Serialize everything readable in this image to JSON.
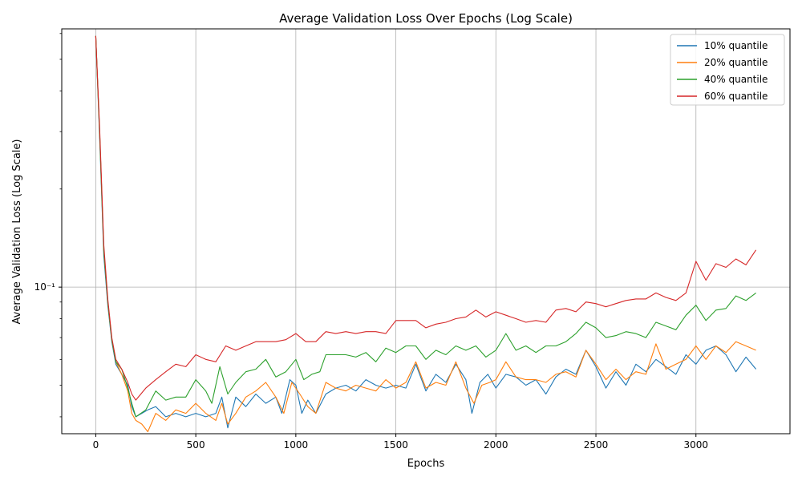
{
  "chart_data": {
    "type": "line",
    "title": "Average Validation Loss Over Epochs (Log Scale)",
    "xlabel": "Epochs",
    "ylabel": "Average Validation Loss (Log Scale)",
    "xlim": [
      -170,
      3470
    ],
    "ylim": [
      0.0355,
      0.62
    ],
    "yscale": "log",
    "grid": true,
    "legend_position": "top-right",
    "x_ticks": [
      0,
      500,
      1000,
      1500,
      2000,
      2500,
      3000
    ],
    "x_tick_labels": [
      "0",
      "500",
      "1000",
      "1500",
      "2000",
      "2500",
      "3000"
    ],
    "y_ticks": [
      0.1
    ],
    "y_tick_labels": [
      "10⁻¹"
    ],
    "series": [
      {
        "name": "10% quantile",
        "color": "#1f77b4",
        "points": [
          [
            0,
            0.59
          ],
          [
            20,
            0.28
          ],
          [
            40,
            0.125
          ],
          [
            60,
            0.088
          ],
          [
            80,
            0.068
          ],
          [
            100,
            0.058
          ],
          [
            130,
            0.054
          ],
          [
            160,
            0.05
          ],
          [
            180,
            0.043
          ],
          [
            200,
            0.04
          ],
          [
            230,
            0.041
          ],
          [
            260,
            0.042
          ],
          [
            300,
            0.043
          ],
          [
            350,
            0.04
          ],
          [
            400,
            0.041
          ],
          [
            450,
            0.04
          ],
          [
            500,
            0.041
          ],
          [
            550,
            0.04
          ],
          [
            600,
            0.041
          ],
          [
            630,
            0.046
          ],
          [
            660,
            0.037
          ],
          [
            700,
            0.046
          ],
          [
            750,
            0.043
          ],
          [
            800,
            0.047
          ],
          [
            850,
            0.044
          ],
          [
            900,
            0.046
          ],
          [
            930,
            0.041
          ],
          [
            970,
            0.052
          ],
          [
            1000,
            0.05
          ],
          [
            1030,
            0.041
          ],
          [
            1060,
            0.045
          ],
          [
            1100,
            0.041
          ],
          [
            1150,
            0.047
          ],
          [
            1200,
            0.049
          ],
          [
            1250,
            0.05
          ],
          [
            1300,
            0.048
          ],
          [
            1350,
            0.052
          ],
          [
            1400,
            0.05
          ],
          [
            1450,
            0.049
          ],
          [
            1500,
            0.05
          ],
          [
            1550,
            0.049
          ],
          [
            1600,
            0.058
          ],
          [
            1650,
            0.048
          ],
          [
            1700,
            0.054
          ],
          [
            1750,
            0.051
          ],
          [
            1800,
            0.058
          ],
          [
            1850,
            0.052
          ],
          [
            1880,
            0.041
          ],
          [
            1920,
            0.051
          ],
          [
            1960,
            0.054
          ],
          [
            2000,
            0.049
          ],
          [
            2050,
            0.054
          ],
          [
            2100,
            0.053
          ],
          [
            2150,
            0.05
          ],
          [
            2200,
            0.052
          ],
          [
            2250,
            0.047
          ],
          [
            2300,
            0.053
          ],
          [
            2350,
            0.056
          ],
          [
            2400,
            0.054
          ],
          [
            2450,
            0.064
          ],
          [
            2500,
            0.057
          ],
          [
            2550,
            0.049
          ],
          [
            2600,
            0.055
          ],
          [
            2650,
            0.05
          ],
          [
            2700,
            0.058
          ],
          [
            2750,
            0.055
          ],
          [
            2800,
            0.06
          ],
          [
            2850,
            0.057
          ],
          [
            2900,
            0.054
          ],
          [
            2950,
            0.062
          ],
          [
            3000,
            0.058
          ],
          [
            3050,
            0.064
          ],
          [
            3100,
            0.066
          ],
          [
            3150,
            0.062
          ],
          [
            3200,
            0.055
          ],
          [
            3250,
            0.061
          ],
          [
            3300,
            0.056
          ]
        ]
      },
      {
        "name": "20% quantile",
        "color": "#ff7f0e",
        "points": [
          [
            0,
            0.59
          ],
          [
            20,
            0.29
          ],
          [
            40,
            0.13
          ],
          [
            60,
            0.09
          ],
          [
            80,
            0.069
          ],
          [
            100,
            0.059
          ],
          [
            130,
            0.054
          ],
          [
            160,
            0.048
          ],
          [
            180,
            0.041
          ],
          [
            200,
            0.039
          ],
          [
            230,
            0.038
          ],
          [
            260,
            0.036
          ],
          [
            300,
            0.041
          ],
          [
            350,
            0.039
          ],
          [
            400,
            0.042
          ],
          [
            450,
            0.041
          ],
          [
            500,
            0.044
          ],
          [
            550,
            0.041
          ],
          [
            600,
            0.039
          ],
          [
            630,
            0.044
          ],
          [
            660,
            0.038
          ],
          [
            700,
            0.041
          ],
          [
            750,
            0.046
          ],
          [
            800,
            0.048
          ],
          [
            850,
            0.051
          ],
          [
            900,
            0.046
          ],
          [
            940,
            0.041
          ],
          [
            980,
            0.051
          ],
          [
            1020,
            0.047
          ],
          [
            1060,
            0.043
          ],
          [
            1100,
            0.041
          ],
          [
            1150,
            0.051
          ],
          [
            1200,
            0.049
          ],
          [
            1250,
            0.048
          ],
          [
            1300,
            0.05
          ],
          [
            1350,
            0.049
          ],
          [
            1400,
            0.048
          ],
          [
            1450,
            0.052
          ],
          [
            1500,
            0.049
          ],
          [
            1550,
            0.051
          ],
          [
            1600,
            0.059
          ],
          [
            1650,
            0.049
          ],
          [
            1700,
            0.051
          ],
          [
            1750,
            0.05
          ],
          [
            1800,
            0.059
          ],
          [
            1850,
            0.049
          ],
          [
            1890,
            0.044
          ],
          [
            1930,
            0.05
          ],
          [
            1970,
            0.051
          ],
          [
            2000,
            0.052
          ],
          [
            2050,
            0.059
          ],
          [
            2100,
            0.053
          ],
          [
            2150,
            0.052
          ],
          [
            2200,
            0.052
          ],
          [
            2250,
            0.051
          ],
          [
            2300,
            0.054
          ],
          [
            2350,
            0.055
          ],
          [
            2400,
            0.053
          ],
          [
            2450,
            0.064
          ],
          [
            2500,
            0.058
          ],
          [
            2550,
            0.052
          ],
          [
            2600,
            0.056
          ],
          [
            2650,
            0.052
          ],
          [
            2700,
            0.055
          ],
          [
            2750,
            0.054
          ],
          [
            2800,
            0.067
          ],
          [
            2850,
            0.056
          ],
          [
            2900,
            0.058
          ],
          [
            2950,
            0.06
          ],
          [
            3000,
            0.066
          ],
          [
            3050,
            0.06
          ],
          [
            3100,
            0.066
          ],
          [
            3150,
            0.063
          ],
          [
            3200,
            0.068
          ],
          [
            3250,
            0.066
          ],
          [
            3300,
            0.064
          ]
        ]
      },
      {
        "name": "40% quantile",
        "color": "#2ca02c",
        "points": [
          [
            0,
            0.59
          ],
          [
            20,
            0.29
          ],
          [
            40,
            0.13
          ],
          [
            60,
            0.09
          ],
          [
            80,
            0.069
          ],
          [
            100,
            0.059
          ],
          [
            130,
            0.056
          ],
          [
            160,
            0.049
          ],
          [
            180,
            0.044
          ],
          [
            200,
            0.04
          ],
          [
            250,
            0.042
          ],
          [
            300,
            0.048
          ],
          [
            350,
            0.045
          ],
          [
            400,
            0.046
          ],
          [
            450,
            0.046
          ],
          [
            500,
            0.052
          ],
          [
            550,
            0.048
          ],
          [
            580,
            0.044
          ],
          [
            620,
            0.057
          ],
          [
            660,
            0.047
          ],
          [
            700,
            0.051
          ],
          [
            750,
            0.055
          ],
          [
            800,
            0.056
          ],
          [
            850,
            0.06
          ],
          [
            900,
            0.053
          ],
          [
            950,
            0.055
          ],
          [
            1000,
            0.06
          ],
          [
            1040,
            0.052
          ],
          [
            1080,
            0.054
          ],
          [
            1120,
            0.055
          ],
          [
            1150,
            0.062
          ],
          [
            1200,
            0.062
          ],
          [
            1250,
            0.062
          ],
          [
            1300,
            0.061
          ],
          [
            1350,
            0.063
          ],
          [
            1400,
            0.059
          ],
          [
            1450,
            0.065
          ],
          [
            1500,
            0.063
          ],
          [
            1550,
            0.066
          ],
          [
            1600,
            0.066
          ],
          [
            1650,
            0.06
          ],
          [
            1700,
            0.064
          ],
          [
            1750,
            0.062
          ],
          [
            1800,
            0.066
          ],
          [
            1850,
            0.064
          ],
          [
            1900,
            0.066
          ],
          [
            1950,
            0.061
          ],
          [
            2000,
            0.064
          ],
          [
            2050,
            0.072
          ],
          [
            2100,
            0.064
          ],
          [
            2150,
            0.066
          ],
          [
            2200,
            0.063
          ],
          [
            2250,
            0.066
          ],
          [
            2300,
            0.066
          ],
          [
            2350,
            0.068
          ],
          [
            2400,
            0.072
          ],
          [
            2450,
            0.078
          ],
          [
            2500,
            0.075
          ],
          [
            2550,
            0.07
          ],
          [
            2600,
            0.071
          ],
          [
            2650,
            0.073
          ],
          [
            2700,
            0.072
          ],
          [
            2750,
            0.07
          ],
          [
            2800,
            0.078
          ],
          [
            2850,
            0.076
          ],
          [
            2900,
            0.074
          ],
          [
            2950,
            0.082
          ],
          [
            3000,
            0.088
          ],
          [
            3050,
            0.079
          ],
          [
            3100,
            0.085
          ],
          [
            3150,
            0.086
          ],
          [
            3200,
            0.094
          ],
          [
            3250,
            0.091
          ],
          [
            3300,
            0.096
          ]
        ]
      },
      {
        "name": "60% quantile",
        "color": "#d62728",
        "points": [
          [
            0,
            0.59
          ],
          [
            20,
            0.3
          ],
          [
            40,
            0.135
          ],
          [
            60,
            0.092
          ],
          [
            80,
            0.07
          ],
          [
            100,
            0.06
          ],
          [
            130,
            0.056
          ],
          [
            160,
            0.051
          ],
          [
            180,
            0.047
          ],
          [
            200,
            0.045
          ],
          [
            250,
            0.049
          ],
          [
            300,
            0.052
          ],
          [
            350,
            0.055
          ],
          [
            400,
            0.058
          ],
          [
            450,
            0.057
          ],
          [
            500,
            0.062
          ],
          [
            550,
            0.06
          ],
          [
            600,
            0.059
          ],
          [
            650,
            0.066
          ],
          [
            700,
            0.064
          ],
          [
            750,
            0.066
          ],
          [
            800,
            0.068
          ],
          [
            850,
            0.068
          ],
          [
            900,
            0.068
          ],
          [
            950,
            0.069
          ],
          [
            1000,
            0.072
          ],
          [
            1050,
            0.068
          ],
          [
            1100,
            0.068
          ],
          [
            1150,
            0.073
          ],
          [
            1200,
            0.072
          ],
          [
            1250,
            0.073
          ],
          [
            1300,
            0.072
          ],
          [
            1350,
            0.073
          ],
          [
            1400,
            0.073
          ],
          [
            1450,
            0.072
          ],
          [
            1500,
            0.079
          ],
          [
            1550,
            0.079
          ],
          [
            1600,
            0.079
          ],
          [
            1650,
            0.075
          ],
          [
            1700,
            0.077
          ],
          [
            1750,
            0.078
          ],
          [
            1800,
            0.08
          ],
          [
            1850,
            0.081
          ],
          [
            1900,
            0.085
          ],
          [
            1950,
            0.081
          ],
          [
            2000,
            0.084
          ],
          [
            2050,
            0.082
          ],
          [
            2100,
            0.08
          ],
          [
            2150,
            0.078
          ],
          [
            2200,
            0.079
          ],
          [
            2250,
            0.078
          ],
          [
            2300,
            0.085
          ],
          [
            2350,
            0.086
          ],
          [
            2400,
            0.084
          ],
          [
            2450,
            0.09
          ],
          [
            2500,
            0.089
          ],
          [
            2550,
            0.087
          ],
          [
            2600,
            0.089
          ],
          [
            2650,
            0.091
          ],
          [
            2700,
            0.092
          ],
          [
            2750,
            0.092
          ],
          [
            2800,
            0.096
          ],
          [
            2850,
            0.093
          ],
          [
            2900,
            0.091
          ],
          [
            2950,
            0.096
          ],
          [
            3000,
            0.12
          ],
          [
            3050,
            0.105
          ],
          [
            3100,
            0.118
          ],
          [
            3150,
            0.115
          ],
          [
            3200,
            0.122
          ],
          [
            3250,
            0.117
          ],
          [
            3300,
            0.13
          ]
        ]
      }
    ]
  }
}
